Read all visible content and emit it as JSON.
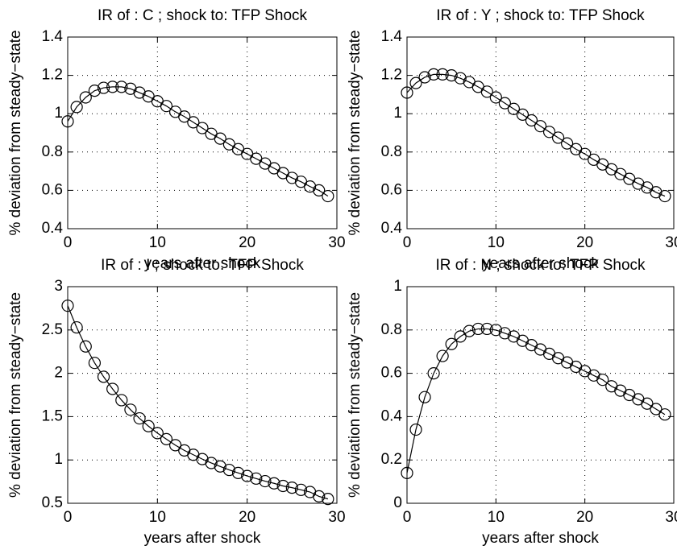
{
  "chart_data": [
    {
      "type": "line",
      "title": "IR of :  C ; shock to: TFP Shock",
      "xlabel": "years after shock",
      "ylabel": "% deviation from steady−state",
      "x": [
        0,
        1,
        2,
        3,
        4,
        5,
        6,
        7,
        8,
        9,
        10,
        11,
        12,
        13,
        14,
        15,
        16,
        17,
        18,
        19,
        20,
        21,
        22,
        23,
        24,
        25,
        26,
        27,
        28,
        29
      ],
      "values": [
        0.96,
        1.035,
        1.085,
        1.12,
        1.135,
        1.14,
        1.14,
        1.13,
        1.11,
        1.09,
        1.065,
        1.04,
        1.01,
        0.985,
        0.955,
        0.925,
        0.895,
        0.87,
        0.84,
        0.815,
        0.79,
        0.765,
        0.74,
        0.715,
        0.69,
        0.665,
        0.645,
        0.62,
        0.6,
        0.57
      ],
      "color": "#000000",
      "xlim": [
        0,
        30
      ],
      "xticks": [
        0,
        10,
        20,
        30
      ],
      "ylim": [
        0.4,
        1.4
      ],
      "yticks": [
        0.4,
        0.6,
        0.8,
        1,
        1.2,
        1.4
      ],
      "grid": true
    },
    {
      "type": "line",
      "title": "IR of :  Y ; shock to: TFP Shock",
      "xlabel": "years after shock",
      "ylabel": "% deviation from steady−state",
      "x": [
        0,
        1,
        2,
        3,
        4,
        5,
        6,
        7,
        8,
        9,
        10,
        11,
        12,
        13,
        14,
        15,
        16,
        17,
        18,
        19,
        20,
        21,
        22,
        23,
        24,
        25,
        26,
        27,
        28,
        29
      ],
      "values": [
        1.11,
        1.16,
        1.19,
        1.205,
        1.205,
        1.2,
        1.185,
        1.165,
        1.14,
        1.115,
        1.085,
        1.055,
        1.025,
        0.995,
        0.965,
        0.935,
        0.905,
        0.875,
        0.845,
        0.815,
        0.79,
        0.76,
        0.735,
        0.71,
        0.685,
        0.66,
        0.635,
        0.615,
        0.59,
        0.57
      ],
      "color": "#000000",
      "xlim": [
        0,
        30
      ],
      "xticks": [
        0,
        10,
        20,
        30
      ],
      "ylim": [
        0.4,
        1.4
      ],
      "yticks": [
        0.4,
        0.6,
        0.8,
        1,
        1.2,
        1.4
      ],
      "grid": true
    },
    {
      "type": "line",
      "title": "IR of :  I ; shock to: TFP Shock",
      "xlabel": "years after shock",
      "ylabel": "% deviation from steady−state",
      "x": [
        0,
        1,
        2,
        3,
        4,
        5,
        6,
        7,
        8,
        9,
        10,
        11,
        12,
        13,
        14,
        15,
        16,
        17,
        18,
        19,
        20,
        21,
        22,
        23,
        24,
        25,
        26,
        27,
        28,
        29
      ],
      "values": [
        2.78,
        2.53,
        2.31,
        2.12,
        1.96,
        1.82,
        1.69,
        1.58,
        1.48,
        1.39,
        1.31,
        1.24,
        1.17,
        1.11,
        1.06,
        1.01,
        0.965,
        0.925,
        0.885,
        0.85,
        0.815,
        0.785,
        0.755,
        0.73,
        0.7,
        0.68,
        0.655,
        0.63,
        0.58,
        0.55
      ],
      "color": "#000000",
      "xlim": [
        0,
        30
      ],
      "xticks": [
        0,
        10,
        20,
        30
      ],
      "ylim": [
        0.5,
        3
      ],
      "yticks": [
        0.5,
        1,
        1.5,
        2,
        2.5,
        3
      ],
      "grid": true
    },
    {
      "type": "line",
      "title": "IR of :  N ; shock to: TFP Shock",
      "xlabel": "years after shock",
      "ylabel": "% deviation from steady−state",
      "x": [
        0,
        1,
        2,
        3,
        4,
        5,
        6,
        7,
        8,
        9,
        10,
        11,
        12,
        13,
        14,
        15,
        16,
        17,
        18,
        19,
        20,
        21,
        22,
        23,
        24,
        25,
        26,
        27,
        28,
        29
      ],
      "values": [
        0.14,
        0.34,
        0.49,
        0.6,
        0.68,
        0.735,
        0.77,
        0.795,
        0.805,
        0.805,
        0.8,
        0.785,
        0.77,
        0.75,
        0.73,
        0.71,
        0.69,
        0.67,
        0.65,
        0.63,
        0.61,
        0.59,
        0.57,
        0.54,
        0.52,
        0.5,
        0.48,
        0.46,
        0.435,
        0.41
      ],
      "color": "#000000",
      "xlim": [
        0,
        30
      ],
      "xticks": [
        0,
        10,
        20,
        30
      ],
      "ylim": [
        0,
        1
      ],
      "yticks": [
        0,
        0.2,
        0.4,
        0.6,
        0.8,
        1
      ],
      "grid": true
    }
  ]
}
